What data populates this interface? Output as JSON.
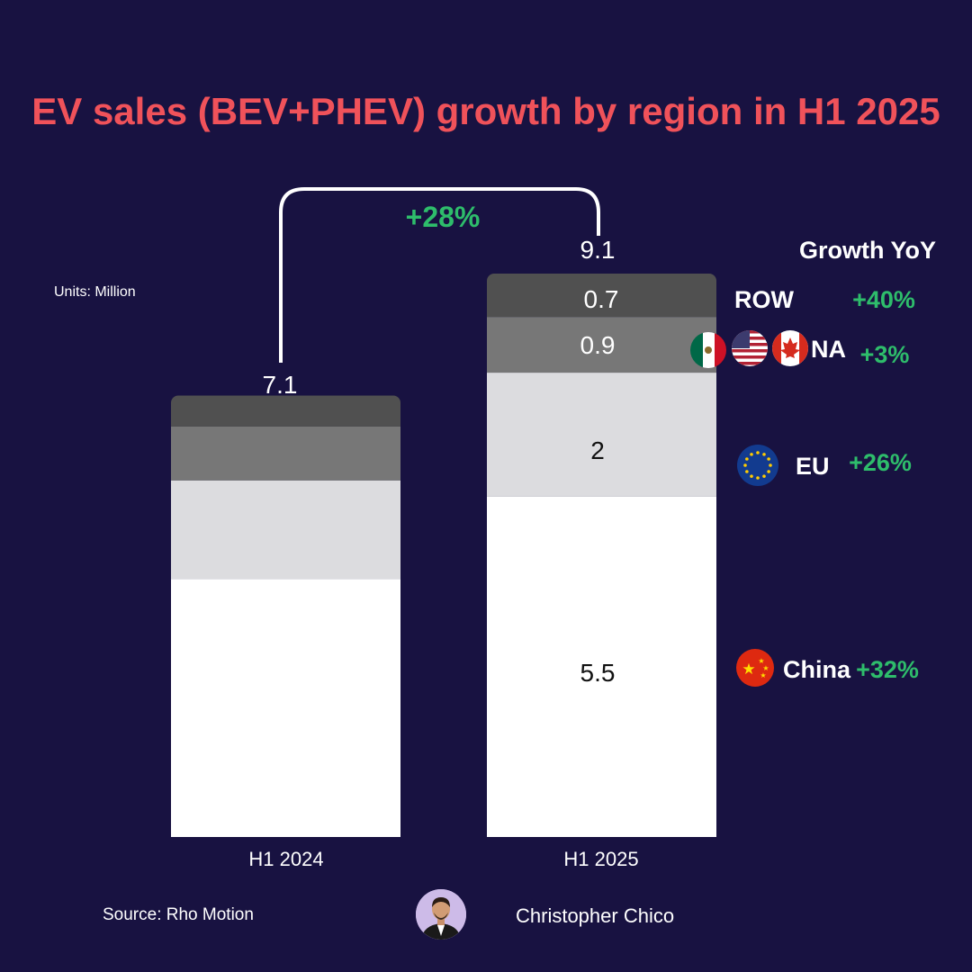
{
  "chart_data": {
    "type": "bar",
    "stacked": true,
    "title": "EV sales (BEV+PHEV) growth by region in H1 2025",
    "units_label": "Units: Million",
    "categories": [
      "H1 2024",
      "H1 2025"
    ],
    "totals": [
      "7.1",
      "9.1"
    ],
    "series": [
      {
        "name": "China",
        "values": [
          4.17,
          5.5
        ],
        "color": "#ffffff",
        "label_color": "#111111"
      },
      {
        "name": "EU",
        "values": [
          1.59,
          2.0
        ],
        "color": "#dcdcdf",
        "label_color": "#111111"
      },
      {
        "name": "NA",
        "values": [
          0.87,
          0.9
        ],
        "color": "#777777",
        "label_color": "#ffffff"
      },
      {
        "name": "ROW",
        "values": [
          0.5,
          0.7
        ],
        "color": "#505050",
        "label_color": "#ffffff"
      }
    ],
    "segment_labels_2025": [
      "5.5",
      "2",
      "0.9",
      "0.7"
    ],
    "ylim": [
      0,
      9.1
    ],
    "overall_growth": "+28%",
    "legend_header": "Growth YoY",
    "legend": [
      {
        "region": "ROW",
        "growth": "+40%"
      },
      {
        "region": "NA",
        "growth": "+3%"
      },
      {
        "region": "EU",
        "growth": "+26%"
      },
      {
        "region": "China",
        "growth": "+32%"
      }
    ]
  },
  "footer": {
    "source": "Source: Rho Motion",
    "author": "Christopher Chico"
  },
  "colors": {
    "background": "#181241",
    "title": "#f0525a",
    "growth": "#2ebd6b"
  }
}
